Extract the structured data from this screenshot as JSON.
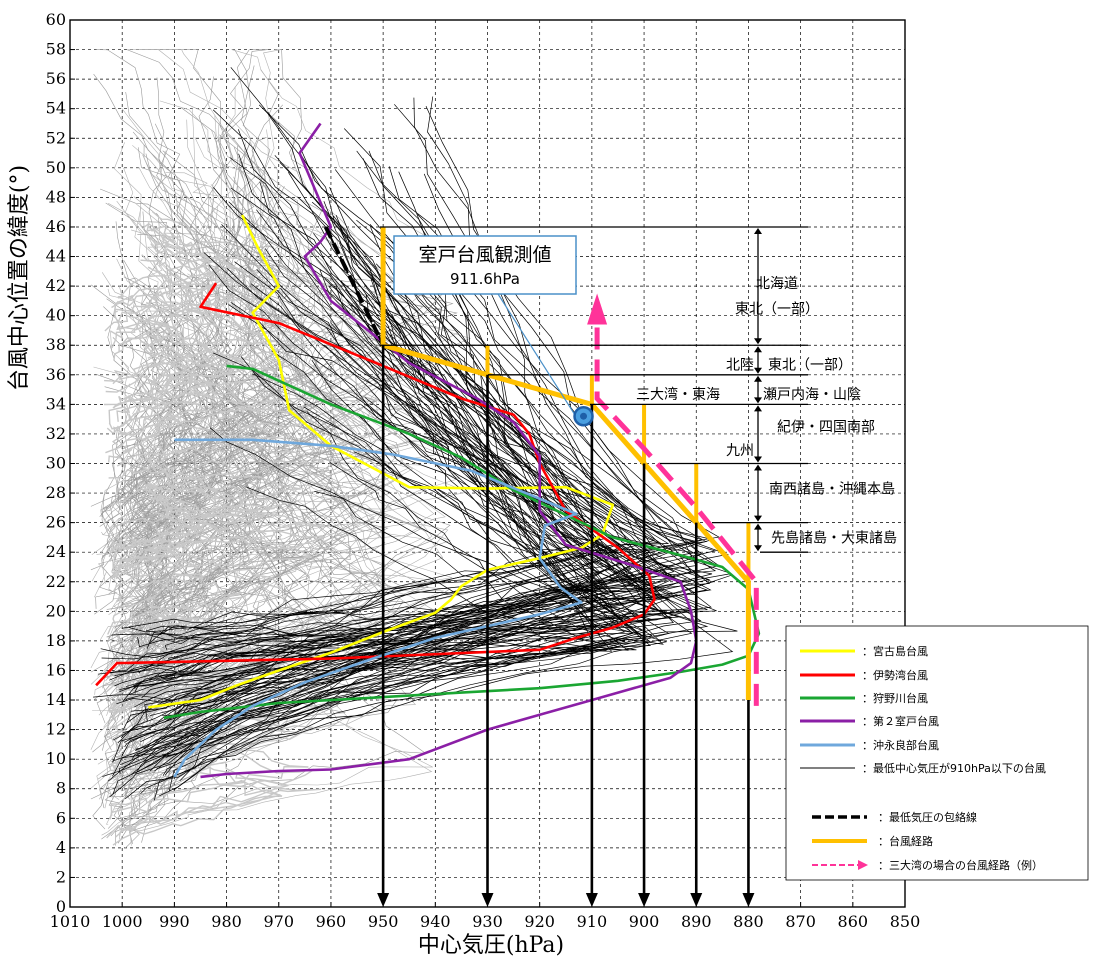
{
  "chart_data": {
    "type": "line",
    "xlabel": "中心気圧(hPa)",
    "ylabel": "台風中心位置の緯度(°)",
    "xlim": [
      1010,
      850
    ],
    "ylim": [
      0,
      60
    ],
    "x_ticks": [
      1010,
      1000,
      990,
      980,
      970,
      960,
      950,
      940,
      930,
      920,
      910,
      900,
      890,
      880,
      870,
      860,
      850
    ],
    "y_ticks": [
      0,
      2,
      4,
      6,
      8,
      10,
      12,
      14,
      16,
      18,
      20,
      22,
      24,
      26,
      28,
      30,
      32,
      34,
      36,
      38,
      40,
      42,
      44,
      46,
      48,
      50,
      52,
      54,
      56,
      58,
      60
    ],
    "grid": true,
    "legend_position": "bottom-right",
    "colors": {
      "yellow": "#ffff00",
      "red": "#ff0000",
      "green": "#1aa632",
      "purple": "#8b1fa6",
      "blue": "#6fa8dc",
      "black": "#000000",
      "orange": "#ffc000",
      "pink": "#ff3399",
      "gray": "#a6a6a6"
    },
    "series": [
      {
        "name": "宮古島台風",
        "color": "yellow",
        "x": [
          995,
          985,
          978,
          970,
          960,
          950,
          940,
          937,
          935,
          930,
          920,
          912,
          908,
          906,
          915,
          930,
          945,
          960,
          968,
          970,
          975,
          970,
          974,
          977
        ],
        "y": [
          13.5,
          14,
          15,
          16,
          17.2,
          18.6,
          19.9,
          20.8,
          21.7,
          22.8,
          23.6,
          24.3,
          25.2,
          27.2,
          28.4,
          28.3,
          28.4,
          31.2,
          33.6,
          37,
          40.2,
          42,
          44.6,
          46.8
        ]
      },
      {
        "name": "伊勢湾台風",
        "color": "red",
        "x": [
          1005,
          1001,
          960,
          920,
          913,
          906,
          900,
          898,
          899,
          905,
          915,
          920,
          922,
          925,
          935,
          950,
          970,
          985,
          982
        ],
        "y": [
          15,
          16.5,
          16.8,
          17.4,
          18.2,
          18.9,
          19.8,
          20.8,
          22.4,
          24.3,
          26.8,
          30,
          32,
          33.3,
          34.4,
          36.6,
          39.5,
          40.6,
          42.2
        ]
      },
      {
        "name": "狩野川台風",
        "color": "green",
        "x": [
          992,
          985,
          970,
          950,
          935,
          920,
          905,
          893,
          885,
          880,
          878,
          880,
          885,
          893,
          906,
          925,
          935,
          945,
          960,
          975,
          980
        ],
        "y": [
          12.8,
          13.2,
          13.8,
          14.2,
          14.5,
          14.8,
          15.3,
          15.9,
          16.4,
          17,
          18.5,
          21.5,
          23,
          23.8,
          25,
          28.2,
          30.4,
          32,
          34,
          36.4,
          36.6
        ]
      },
      {
        "name": "第２室戸台風",
        "color": "purple",
        "x": [
          985,
          980,
          970,
          960,
          945,
          930,
          920,
          912,
          905,
          895,
          891,
          890,
          891,
          893,
          903,
          915,
          920,
          920,
          925,
          932,
          945,
          960,
          965,
          962,
          960,
          966,
          962
        ],
        "y": [
          8.8,
          9,
          9.2,
          9.3,
          10,
          12,
          13,
          13.8,
          14.5,
          15.5,
          16.5,
          18,
          20,
          22,
          23.2,
          24.5,
          26.8,
          30.5,
          32.8,
          34.4,
          36.8,
          41,
          44,
          45,
          46,
          51,
          53
        ]
      },
      {
        "name": "沖永良部台風",
        "color": "blue",
        "x": [
          990,
          988,
          982,
          975,
          965,
          952,
          940,
          930,
          920,
          912,
          916,
          920,
          919,
          913,
          933,
          948,
          960,
          975,
          990
        ],
        "y": [
          8.8,
          10,
          12,
          13.6,
          15.2,
          16.8,
          18.2,
          19,
          19.8,
          20.6,
          21.6,
          23.6,
          25.8,
          26.6,
          29.5,
          30.6,
          31.2,
          31.6,
          31.6
        ]
      },
      {
        "name": "最低中心気圧が910hPa以下の台風",
        "color": "black"
      },
      {
        "name": "最低気圧の包絡線",
        "color": "black",
        "style": "dashed",
        "x": [
          961,
          950,
          930,
          910,
          900,
          890,
          880
        ],
        "y": [
          46,
          38,
          36,
          34,
          30,
          26,
          22
        ]
      },
      {
        "name": "台風経路",
        "color": "orange",
        "style": "solid-thick",
        "x": [
          950,
          950,
          950,
          930,
          910,
          900,
          890,
          880,
          880
        ],
        "y": [
          46,
          38,
          38,
          36,
          34,
          30,
          26,
          22,
          14
        ]
      },
      {
        "name": "三大湾の場合の台風経路（例）",
        "color": "pink",
        "style": "dashed-arrow",
        "x": [
          878.5,
          878.5,
          890,
          900,
          909,
          909
        ],
        "y": [
          13.6,
          22,
          27,
          31,
          34.4,
          40
        ]
      }
    ],
    "regions": [
      {
        "label": "北海道",
        "from": 38,
        "to": 46
      },
      {
        "label": "東北（一部）",
        "from": 38,
        "to": 46
      },
      {
        "label": "北陸",
        "from": 36,
        "to": 38
      },
      {
        "label": "東北（一部）",
        "from": 36,
        "to": 38
      },
      {
        "label": "三大湾・東海",
        "from": 34,
        "to": 36
      },
      {
        "label": "瀬戸内海・山陰",
        "from": 34,
        "to": 36
      },
      {
        "label": "紀伊・四国南部",
        "from": 30,
        "to": 34
      },
      {
        "label": "九州",
        "from": 30,
        "to": 34
      },
      {
        "label": "南西諸島・沖縄本島",
        "from": 26,
        "to": 30
      },
      {
        "label": "先島諸島・大東諸島",
        "from": 24,
        "to": 26
      }
    ],
    "pressure_arrows": [
      950,
      930,
      910,
      900,
      890,
      880
    ],
    "annotation": {
      "title": "室戸台風観測値",
      "value": "911.6hPa",
      "point": {
        "x": 911.6,
        "y": 33.2
      }
    }
  }
}
